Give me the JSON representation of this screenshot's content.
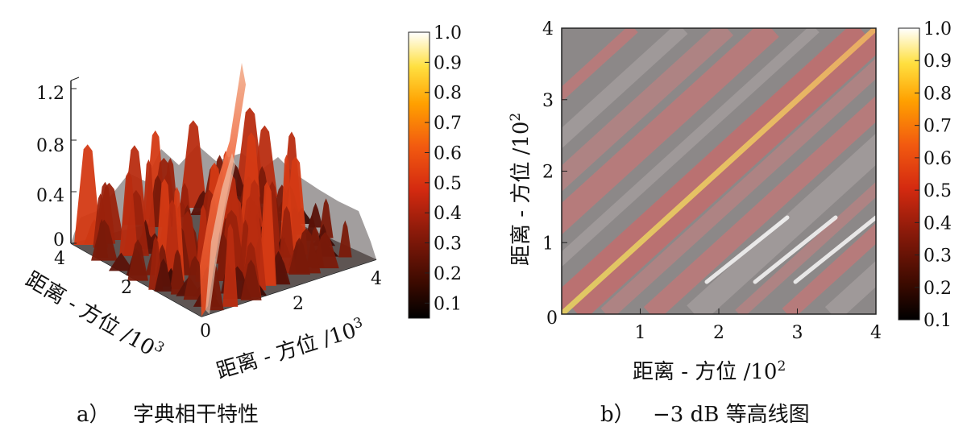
{
  "chart_data": [
    {
      "type": "surface3d",
      "panel_label": "a）",
      "caption": "字典相干特性",
      "zticks": [
        "1.2",
        "0.8",
        "0.4",
        "0"
      ],
      "zlim": [
        0,
        1.2
      ],
      "xlabel": "距离 - 方位 /10",
      "xlabel_exp": "3",
      "ylabel": "距离 - 方位 /10",
      "ylabel_exp": "3",
      "xticks": [
        "0",
        "2",
        "4"
      ],
      "yticks": [
        "0",
        "2",
        "4"
      ],
      "xlim": [
        0,
        4000
      ],
      "ylim": [
        0,
        4000
      ],
      "peak_value": 1.2,
      "colorbar": {
        "min": 0.05,
        "max": 1.0,
        "ticks": [
          "1.0",
          "0.9",
          "0.8",
          "0.7",
          "0.6",
          "0.5",
          "0.4",
          "0.3",
          "0.2",
          "0.1"
        ],
        "colormap": "hot"
      }
    },
    {
      "type": "heatmap",
      "panel_label": "b）",
      "caption": "−3 dB 等高线图",
      "xlabel": "距离 - 方位 /10",
      "xlabel_exp": "2",
      "ylabel": "距离 - 方位 /10",
      "ylabel_exp": "2",
      "xticks": [
        "1",
        "2",
        "3",
        "4"
      ],
      "yticks": [
        "1",
        "2",
        "3",
        "4"
      ],
      "origin_label": "0",
      "xlim": [
        0,
        400
      ],
      "ylim": [
        0,
        400
      ],
      "colorbar": {
        "min": 0.1,
        "max": 1.0,
        "ticks": [
          "1.0",
          "0.9",
          "0.8",
          "0.7",
          "0.6",
          "0.5",
          "0.4",
          "0.3",
          "0.2",
          "0.1"
        ],
        "colormap": "hot"
      }
    }
  ]
}
